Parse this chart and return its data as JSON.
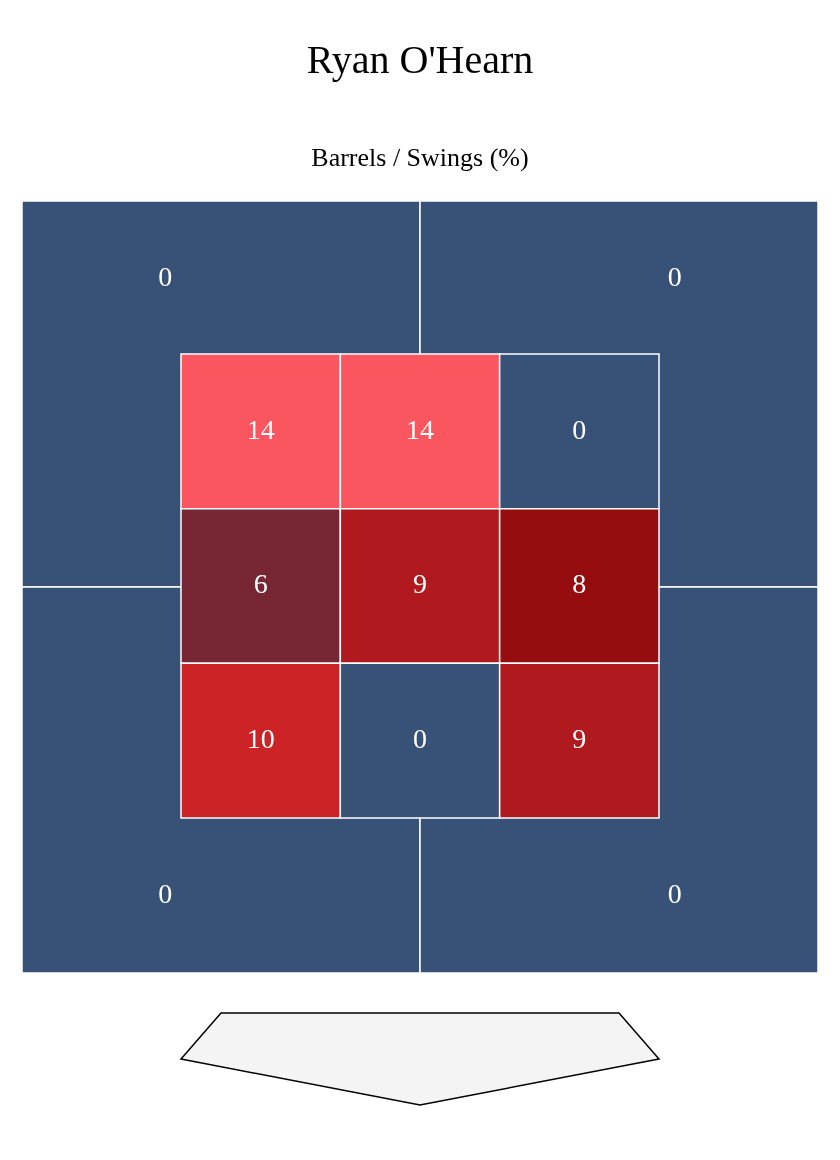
{
  "chart_data": [
    {
      "type": "heatmap",
      "title": "Ryan O'Hearn",
      "subtitle": "Barrels / Swings (%)",
      "categories": [
        null,
        null
      ],
      "y_categories": [
        null,
        null
      ],
      "cells": [
        [
          0,
          0
        ],
        [
          0,
          0
        ]
      ],
      "colors": [
        "#385177",
        "#385177",
        "#385177",
        "#385177"
      ],
      "data_labels": true
    },
    {
      "type": "heatmap",
      "categories": [
        null,
        null,
        null
      ],
      "y_categories": [
        null,
        null,
        null
      ],
      "cells": [
        [
          14,
          14,
          0
        ],
        [
          6,
          9,
          8
        ],
        [
          10,
          0,
          9
        ]
      ],
      "colors": [
        "#f9565f",
        "#f9565f",
        "#385177",
        "#772634",
        "#b0191e",
        "#960d10",
        "#cc2327",
        "#385177",
        "#b0191e"
      ],
      "data_labels": true
    }
  ]
}
